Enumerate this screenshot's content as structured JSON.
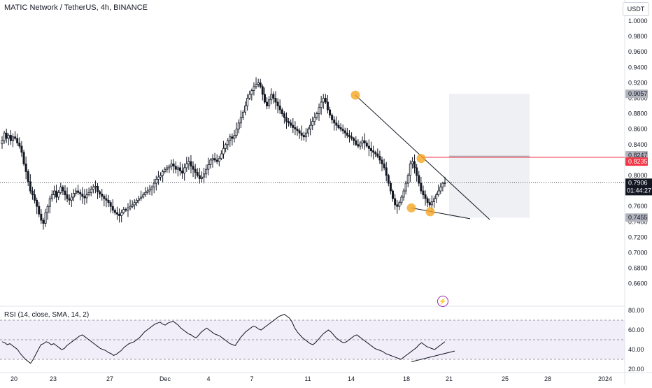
{
  "header": {
    "symbol_line": "MATIC Network / TetherUS, 4h, BINANCE",
    "currency_button": "USDT"
  },
  "indicator": {
    "label": "RSI (14, close, SMA, 14, 2)"
  },
  "price_tags": {
    "current_price": "0.7906",
    "countdown": "01:44:27",
    "target_top": "0.9057",
    "target_upper": "0.8247",
    "entry": "0.8235",
    "stop": "0.7455"
  },
  "icons": {
    "lightning": "lightning-bolt-icon"
  },
  "colors": {
    "up": "#131722",
    "down": "#131722",
    "highlight_circle": "#f5a623",
    "entry_line": "#f23645",
    "target_zone": "#eceef2",
    "rsi_band": "#ede7f6"
  },
  "chart_data": [
    {
      "type": "candlestick",
      "x_tick_labels": [
        "20",
        "23",
        "27",
        "Dec",
        "4",
        "7",
        "11",
        "14",
        "18",
        "21",
        "25",
        "28",
        "2024"
      ],
      "y_tick_labels": [
        "1.0000",
        "0.9800",
        "0.9600",
        "0.9400",
        "0.9200",
        "0.9000",
        "0.8800",
        "0.8600",
        "0.8400",
        "0.8200",
        "0.8000",
        "0.7800",
        "0.7600",
        "0.7400",
        "0.7200",
        "0.7000",
        "0.6800",
        "0.6600"
      ],
      "ylim": [
        0.655,
        1.015
      ],
      "grid": false,
      "close_series_approx": [
        0.845,
        0.855,
        0.848,
        0.852,
        0.845,
        0.85,
        0.848,
        0.842,
        0.838,
        0.83,
        0.815,
        0.805,
        0.792,
        0.78,
        0.775,
        0.768,
        0.76,
        0.75,
        0.742,
        0.738,
        0.752,
        0.76,
        0.77,
        0.775,
        0.78,
        0.772,
        0.778,
        0.785,
        0.78,
        0.775,
        0.77,
        0.768,
        0.772,
        0.777,
        0.78,
        0.778,
        0.776,
        0.773,
        0.771,
        0.775,
        0.778,
        0.782,
        0.785,
        0.786,
        0.779,
        0.776,
        0.773,
        0.77,
        0.768,
        0.765,
        0.76,
        0.755,
        0.752,
        0.75,
        0.748,
        0.752,
        0.756,
        0.755,
        0.758,
        0.76,
        0.762,
        0.765,
        0.768,
        0.77,
        0.772,
        0.775,
        0.778,
        0.78,
        0.782,
        0.785,
        0.79,
        0.795,
        0.798,
        0.8,
        0.805,
        0.808,
        0.81,
        0.812,
        0.815,
        0.812,
        0.808,
        0.81,
        0.806,
        0.803,
        0.81,
        0.815,
        0.818,
        0.812,
        0.808,
        0.804,
        0.8,
        0.796,
        0.798,
        0.802,
        0.808,
        0.814,
        0.82,
        0.822,
        0.82,
        0.818,
        0.822,
        0.828,
        0.835,
        0.84,
        0.845,
        0.85,
        0.848,
        0.852,
        0.86,
        0.868,
        0.875,
        0.882,
        0.89,
        0.9,
        0.905,
        0.91,
        0.915,
        0.918,
        0.92,
        0.915,
        0.905,
        0.895,
        0.89,
        0.898,
        0.905,
        0.9,
        0.895,
        0.89,
        0.885,
        0.88,
        0.875,
        0.87,
        0.868,
        0.865,
        0.862,
        0.86,
        0.858,
        0.855,
        0.852,
        0.85,
        0.855,
        0.86,
        0.865,
        0.87,
        0.875,
        0.88,
        0.888,
        0.895,
        0.9,
        0.895,
        0.885,
        0.878,
        0.872,
        0.868,
        0.865,
        0.862,
        0.86,
        0.858,
        0.855,
        0.852,
        0.85,
        0.848,
        0.845,
        0.84,
        0.838,
        0.842,
        0.845,
        0.842,
        0.838,
        0.835,
        0.832,
        0.83,
        0.828,
        0.825,
        0.82,
        0.815,
        0.81,
        0.8,
        0.79,
        0.78,
        0.77,
        0.762,
        0.76,
        0.765,
        0.772,
        0.78,
        0.79,
        0.8,
        0.815,
        0.818,
        0.81,
        0.8,
        0.79,
        0.78,
        0.775,
        0.77,
        0.765,
        0.762,
        0.766,
        0.77,
        0.775,
        0.78,
        0.785,
        0.79,
        0.7906
      ],
      "drawings": {
        "resistance_line": {
          "from": [
            14.3,
            0.904
          ],
          "to": [
            22.2,
            0.743
          ]
        },
        "support_line": {
          "from": [
            18.5,
            0.758
          ],
          "to": [
            21.1,
            0.744
          ]
        },
        "circles": [
          [
            14.3,
            0.904
          ],
          [
            19.1,
            0.822
          ],
          [
            18.5,
            0.758
          ],
          [
            19.5,
            0.753
          ]
        ],
        "target_zone": {
          "x_from": 21.3,
          "x_to": 24.8,
          "y_from": 0.7455,
          "y_to": 0.9057
        },
        "entry_level": 0.8235
      },
      "current_price": 0.7906
    },
    {
      "type": "line",
      "name": "RSI",
      "ylim": [
        20,
        80
      ],
      "y_tick_labels": [
        "80.00",
        "60.00",
        "40.00",
        "20.00"
      ],
      "band": [
        30,
        70
      ],
      "midline": 50,
      "values": [
        48,
        47,
        45,
        46,
        44,
        42,
        40,
        36,
        33,
        30,
        28,
        26,
        30,
        35,
        40,
        45,
        46,
        48,
        47,
        45,
        46,
        44,
        42,
        40,
        41,
        44,
        46,
        48,
        50,
        52,
        54,
        55,
        53,
        51,
        49,
        47,
        45,
        43,
        41,
        40,
        39,
        37,
        36,
        34,
        35,
        37,
        39,
        42,
        44,
        46,
        47,
        48,
        50,
        52,
        55,
        58,
        60,
        62,
        64,
        66,
        67,
        68,
        66,
        65,
        67,
        68,
        69,
        67,
        65,
        62,
        60,
        58,
        56,
        55,
        53,
        52,
        55,
        58,
        60,
        62,
        60,
        58,
        56,
        55,
        54,
        52,
        50,
        48,
        46,
        45,
        44,
        48,
        52,
        55,
        58,
        60,
        62,
        64,
        63,
        61,
        60,
        62,
        64,
        66,
        68,
        70,
        72,
        74,
        75,
        76,
        74,
        72,
        68,
        62,
        58,
        55,
        52,
        50,
        48,
        46,
        45,
        47,
        50,
        53,
        56,
        58,
        60,
        58,
        55,
        52,
        50,
        48,
        47,
        48,
        50,
        52,
        54,
        55,
        53,
        51,
        49,
        47,
        45,
        43,
        41,
        40,
        39,
        38,
        36,
        35,
        34,
        33,
        32,
        31,
        30,
        32,
        34,
        36,
        38,
        40,
        42,
        45,
        47,
        45,
        43,
        42,
        41,
        40,
        42,
        44,
        46,
        48
      ],
      "drawings": {
        "divergence_line": {
          "from": [
            18.2,
            27.5
          ],
          "to": [
            20.5,
            38.5
          ]
        }
      }
    }
  ]
}
